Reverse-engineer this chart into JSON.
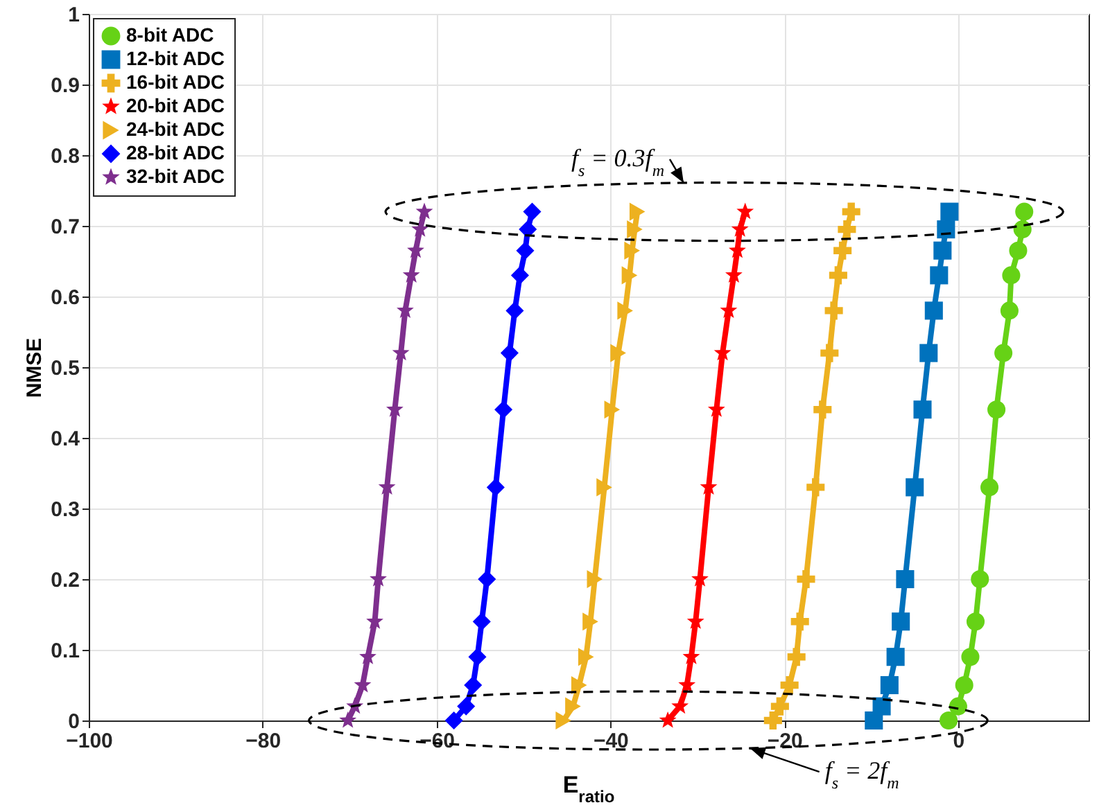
{
  "chart_data": {
    "type": "line",
    "xlabel": "E$_{ratio}$",
    "ylabel": "NMSE",
    "xlim": [
      -100,
      15
    ],
    "xticks": [
      -100,
      -80,
      -60,
      -40,
      -20,
      0
    ],
    "ylim": [
      0,
      1
    ],
    "yticks": [
      0,
      0.1,
      0.2,
      0.3,
      0.4,
      0.5,
      0.6,
      0.7,
      0.8,
      0.9,
      1
    ],
    "grid": true,
    "legend": "top left",
    "annotations": [
      "f$_{s}$ = 0.3f$_{m}$",
      "f$_{s}$ = 2f$_{m}$"
    ],
    "series": [
      {
        "name": "8-bit ADC",
        "color": "#66d216",
        "marker": "circle",
        "x": [
          -1.1,
          0,
          0.7,
          1.4,
          2.0,
          2.5,
          3.6,
          4.4,
          5.2,
          5.9,
          6.1,
          6.9,
          7.4,
          7.6
        ],
        "values": [
          0,
          0.02,
          0.05,
          0.09,
          0.14,
          0.2,
          0.33,
          0.44,
          0.52,
          0.58,
          0.63,
          0.665,
          0.695,
          0.72
        ]
      },
      {
        "name": "12-bit ADC",
        "color": "#0072bd",
        "marker": "square",
        "x": [
          -9.7,
          -8.8,
          -7.9,
          -7.2,
          -6.6,
          -6.1,
          -5.0,
          -4.1,
          -3.4,
          -2.8,
          -2.2,
          -1.8,
          -1.4,
          -1.0
        ],
        "values": [
          0,
          0.02,
          0.05,
          0.09,
          0.14,
          0.2,
          0.33,
          0.44,
          0.52,
          0.58,
          0.63,
          0.665,
          0.695,
          0.72
        ]
      },
      {
        "name": "16-bit ADC",
        "color": "#edb120",
        "marker": "cross",
        "x": [
          -21.3,
          -20.5,
          -19.4,
          -18.6,
          -18.2,
          -17.5,
          -16.4,
          -15.6,
          -14.8,
          -14.3,
          -13.8,
          -13.3,
          -12.8,
          -12.3
        ],
        "values": [
          0,
          0.02,
          0.05,
          0.09,
          0.14,
          0.2,
          0.33,
          0.44,
          0.52,
          0.58,
          0.63,
          0.665,
          0.695,
          0.72
        ]
      },
      {
        "name": "20-bit ADC",
        "color": "#ff0000",
        "marker": "star",
        "x": [
          -33.4,
          -32.0,
          -31.2,
          -30.7,
          -30.2,
          -29.7,
          -28.7,
          -27.8,
          -27.1,
          -26.4,
          -25.8,
          -25.4,
          -25.1,
          -24.5
        ],
        "values": [
          0,
          0.02,
          0.05,
          0.09,
          0.14,
          0.2,
          0.33,
          0.44,
          0.52,
          0.58,
          0.63,
          0.665,
          0.695,
          0.72
        ]
      },
      {
        "name": "24-bit ADC",
        "color": "#edb120",
        "marker": "triangle",
        "x": [
          -45.4,
          -44.3,
          -43.6,
          -42.8,
          -42.3,
          -41.8,
          -40.7,
          -39.8,
          -39.1,
          -38.3,
          -37.8,
          -37.5,
          -37.2,
          -36.9
        ],
        "values": [
          0,
          0.02,
          0.05,
          0.09,
          0.14,
          0.2,
          0.33,
          0.44,
          0.52,
          0.58,
          0.63,
          0.665,
          0.695,
          0.72
        ]
      },
      {
        "name": "28-bit ADC",
        "color": "#0000ff",
        "marker": "diamond",
        "x": [
          -58.0,
          -56.6,
          -55.8,
          -55.3,
          -54.8,
          -54.2,
          -53.2,
          -52.3,
          -51.6,
          -51.0,
          -50.4,
          -49.8,
          -49.5,
          -49.0
        ],
        "values": [
          0,
          0.02,
          0.05,
          0.09,
          0.14,
          0.2,
          0.33,
          0.44,
          0.52,
          0.58,
          0.63,
          0.665,
          0.695,
          0.72
        ]
      },
      {
        "name": "32-bit ADC",
        "color": "#7e2f8e",
        "marker": "star",
        "x": [
          -70.2,
          -69.4,
          -68.5,
          -67.9,
          -67.1,
          -66.7,
          -65.7,
          -64.8,
          -64.1,
          -63.6,
          -62.9,
          -62.4,
          -61.9,
          -61.4
        ],
        "values": [
          0,
          0.02,
          0.05,
          0.09,
          0.14,
          0.2,
          0.33,
          0.44,
          0.52,
          0.58,
          0.63,
          0.665,
          0.695,
          0.72
        ]
      }
    ]
  }
}
